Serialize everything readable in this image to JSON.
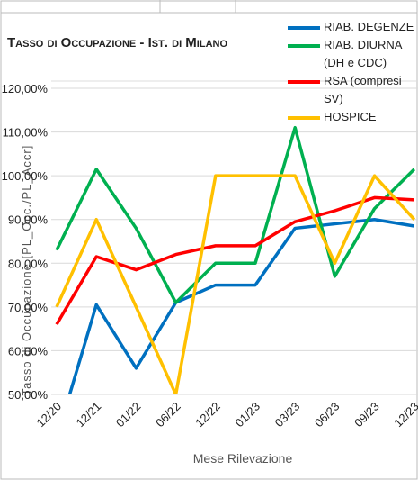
{
  "chart_data": {
    "type": "line",
    "title": "Tasso di Occupazione - Ist. di Milano",
    "x_label": "Mese Rilevazione",
    "y_label": "Tasso di Occupazione [PL_Occ./PL_Accr]",
    "categories": [
      "12/20",
      "12/21",
      "01/22",
      "06/22",
      "12/22",
      "01/23",
      "03/23",
      "06/23",
      "09/23",
      "12/23"
    ],
    "series": [
      {
        "name": "RIAB. DEGENZE",
        "color": "#0070c0",
        "values": [
          40,
          70.5,
          56,
          71,
          75,
          75,
          88,
          89,
          90,
          88.5
        ]
      },
      {
        "name": "RIAB. DIURNA (DH e CDC)",
        "color": "#00b050",
        "values": [
          83,
          101.5,
          88,
          71,
          80,
          80,
          111,
          77,
          92.5,
          101.5
        ]
      },
      {
        "name": "RSA (compresi SV)",
        "color": "#ff0000",
        "values": [
          66,
          81.5,
          78.5,
          82,
          84,
          84,
          89.5,
          92,
          95,
          94.5
        ]
      },
      {
        "name": "HOSPICE",
        "color": "#ffc000",
        "values": [
          70,
          90,
          70,
          50,
          100,
          100,
          100,
          80,
          100,
          90
        ]
      }
    ],
    "ylim": [
      50,
      120
    ],
    "yticks": [
      {
        "value": 50,
        "label": "50,00%"
      },
      {
        "value": 60,
        "label": "60,00%"
      },
      {
        "value": 70,
        "label": "70,00%"
      },
      {
        "value": 80,
        "label": "80,00%"
      },
      {
        "value": 90,
        "label": "90,00%"
      },
      {
        "value": 100,
        "label": "100,00%"
      },
      {
        "value": 110,
        "label": "110,00%"
      },
      {
        "value": 120,
        "label": "120,00%"
      }
    ],
    "grid": true,
    "legend": "top-right"
  }
}
